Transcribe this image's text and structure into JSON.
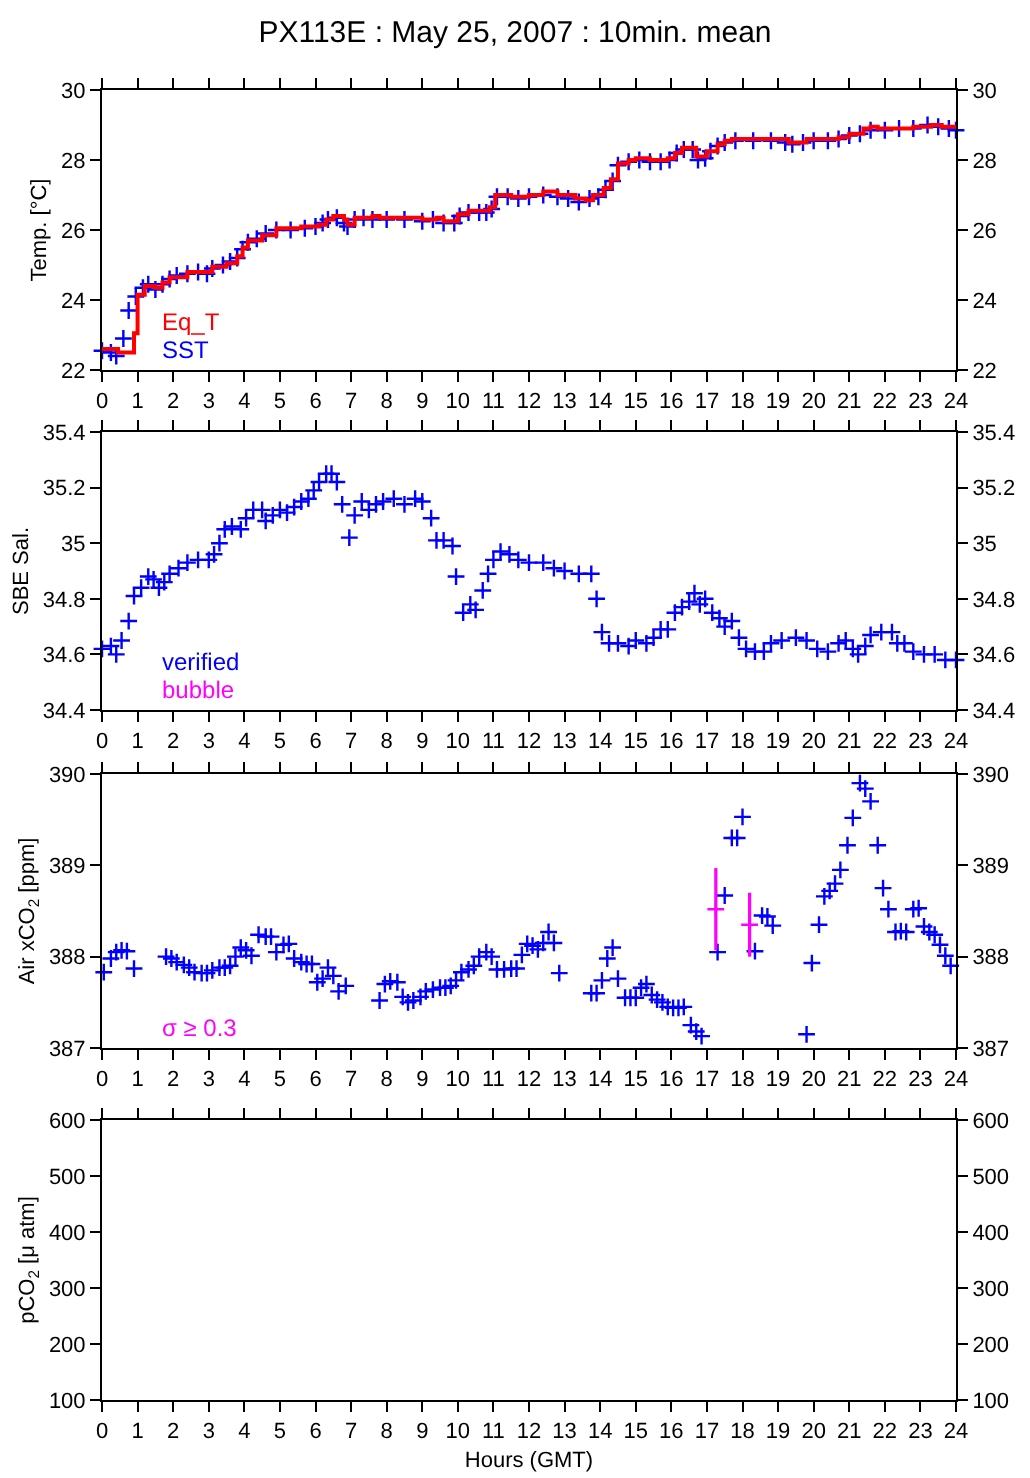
{
  "chart_data": [
    {
      "type": "scatter",
      "title": "PX113E : May 25, 2007 : 10min. mean",
      "ylabel": "Temp. [°C]",
      "grid": false,
      "xlim": [
        0,
        24
      ],
      "xticks": [
        0,
        1,
        2,
        3,
        4,
        5,
        6,
        7,
        8,
        9,
        10,
        11,
        12,
        13,
        14,
        15,
        16,
        17,
        18,
        19,
        20,
        21,
        22,
        23,
        24
      ],
      "ylim": [
        22,
        30
      ],
      "yticks": [
        22,
        24,
        26,
        28,
        30
      ],
      "y2lim": [
        22,
        30
      ],
      "y2ticks": [
        22,
        24,
        26,
        28,
        30
      ],
      "series": [
        {
          "name": "Eq_T",
          "type": "step",
          "color": "#ff0000",
          "x": [
            0,
            0.45,
            0.9,
            1.0,
            1.2,
            1.5,
            1.7,
            1.9,
            2.4,
            3.0,
            3.1,
            3.5,
            3.8,
            3.95,
            4.1,
            4.5,
            4.9,
            5.6,
            6.1,
            6.3,
            6.5,
            6.8,
            6.9,
            7.1,
            7.6,
            7.8,
            9.0,
            9.4,
            9.6,
            10.0,
            10.3,
            10.9,
            11.05,
            11.5,
            12.0,
            12.4,
            12.8,
            13.3,
            13.6,
            13.8,
            14.1,
            14.3,
            14.5,
            14.8,
            15.0,
            15.4,
            15.9,
            16.1,
            16.3,
            16.7,
            17.0,
            17.3,
            17.5,
            17.7,
            18.9,
            19.3,
            19.8,
            20.7,
            21.0,
            21.4,
            21.6,
            21.8,
            22.8,
            23.3,
            23.6,
            24
          ],
          "values": [
            22.6,
            22.5,
            23.05,
            24.15,
            24.4,
            24.35,
            24.5,
            24.65,
            24.8,
            24.8,
            24.95,
            25.05,
            25.25,
            25.5,
            25.7,
            25.85,
            26.05,
            26.1,
            26.15,
            26.3,
            26.4,
            26.3,
            26.15,
            26.35,
            26.4,
            26.35,
            26.3,
            26.35,
            26.25,
            26.45,
            26.55,
            26.65,
            27.0,
            26.95,
            27.0,
            27.1,
            27.0,
            26.9,
            26.85,
            27.0,
            27.2,
            27.45,
            27.9,
            28.0,
            28.05,
            28.0,
            28.05,
            28.2,
            28.35,
            28.1,
            28.25,
            28.45,
            28.55,
            28.6,
            28.6,
            28.5,
            28.6,
            28.65,
            28.75,
            28.9,
            28.95,
            28.9,
            28.95,
            29.0,
            28.95,
            28.95
          ]
        },
        {
          "name": "SST",
          "marker": "cross",
          "color": "#0000ff",
          "x": [
            0,
            0.25,
            0.4,
            0.6,
            0.75,
            0.95,
            1.15,
            1.3,
            1.5,
            1.7,
            1.9,
            2.1,
            2.4,
            2.7,
            2.95,
            3.1,
            3.4,
            3.6,
            3.8,
            3.95,
            4.1,
            4.35,
            4.6,
            4.9,
            5.3,
            5.7,
            6.0,
            6.2,
            6.35,
            6.6,
            6.8,
            6.9,
            7.1,
            7.35,
            7.6,
            8.0,
            8.5,
            9.0,
            9.3,
            9.6,
            9.9,
            10.05,
            10.3,
            10.6,
            10.8,
            10.95,
            11.1,
            11.4,
            11.7,
            12.0,
            12.4,
            12.8,
            13.1,
            13.4,
            13.7,
            13.95,
            14.15,
            14.35,
            14.5,
            14.8,
            15.1,
            15.4,
            15.7,
            15.95,
            16.15,
            16.35,
            16.6,
            16.75,
            16.95,
            17.1,
            17.3,
            17.5,
            17.8,
            18.3,
            18.8,
            19.2,
            19.4,
            19.7,
            20.0,
            20.4,
            20.7,
            21.0,
            21.3,
            21.6,
            22.0,
            22.4,
            22.8,
            23.2,
            23.5,
            23.8,
            24
          ],
          "values": [
            22.55,
            22.5,
            22.4,
            22.9,
            23.7,
            24.1,
            24.35,
            24.45,
            24.3,
            24.45,
            24.6,
            24.7,
            24.75,
            24.8,
            24.75,
            24.9,
            25.0,
            25.1,
            25.2,
            25.45,
            25.65,
            25.75,
            25.9,
            26.0,
            26.0,
            26.05,
            26.1,
            26.2,
            26.3,
            26.35,
            26.2,
            26.1,
            26.3,
            26.35,
            26.3,
            26.3,
            26.3,
            26.25,
            26.3,
            26.2,
            26.2,
            26.4,
            26.5,
            26.5,
            26.5,
            26.6,
            26.95,
            26.95,
            26.9,
            26.95,
            27.0,
            26.95,
            26.9,
            26.8,
            26.9,
            26.95,
            27.15,
            27.4,
            27.85,
            27.95,
            28.0,
            27.95,
            27.95,
            28.0,
            28.2,
            28.3,
            28.3,
            28.0,
            28.05,
            28.25,
            28.4,
            28.5,
            28.55,
            28.55,
            28.55,
            28.5,
            28.45,
            28.5,
            28.55,
            28.55,
            28.6,
            28.7,
            28.75,
            28.85,
            28.85,
            28.9,
            28.9,
            29.0,
            28.95,
            28.9,
            28.85
          ]
        }
      ]
    },
    {
      "type": "scatter",
      "ylabel": "SBE Sal.",
      "marker": "cross",
      "grid": false,
      "annotations": [
        "bubble"
      ],
      "xlim": [
        0,
        24
      ],
      "xticks": [
        0,
        1,
        2,
        3,
        4,
        5,
        6,
        7,
        8,
        9,
        10,
        11,
        12,
        13,
        14,
        15,
        16,
        17,
        18,
        19,
        20,
        21,
        22,
        23,
        24
      ],
      "ylim": [
        34.4,
        35.4
      ],
      "yticks": [
        34.4,
        34.6,
        34.8,
        35,
        35.2,
        35.4
      ],
      "y2lim": [
        34.4,
        35.4
      ],
      "y2ticks": [
        34.4,
        34.6,
        34.8,
        35,
        35.2,
        35.4
      ],
      "series": [
        {
          "name": "verified",
          "color": "#0000ff",
          "x": [
            0,
            0.25,
            0.4,
            0.55,
            0.75,
            0.9,
            1.1,
            1.3,
            1.45,
            1.6,
            1.75,
            1.9,
            2.15,
            2.4,
            2.7,
            3.0,
            3.15,
            3.3,
            3.45,
            3.65,
            3.9,
            4.05,
            4.25,
            4.5,
            4.6,
            4.8,
            5.0,
            5.2,
            5.4,
            5.6,
            5.8,
            5.95,
            6.1,
            6.3,
            6.45,
            6.6,
            6.75,
            6.95,
            7.1,
            7.3,
            7.5,
            7.7,
            7.9,
            8.2,
            8.5,
            8.8,
            9.0,
            9.25,
            9.4,
            9.6,
            9.85,
            9.95,
            10.15,
            10.35,
            10.5,
            10.7,
            10.85,
            11.0,
            11.2,
            11.45,
            11.7,
            12.0,
            12.4,
            12.7,
            13.0,
            13.4,
            13.75,
            13.9,
            14.05,
            14.25,
            14.5,
            14.8,
            15.0,
            15.3,
            15.5,
            15.7,
            15.9,
            16.1,
            16.3,
            16.5,
            16.65,
            16.8,
            16.95,
            17.15,
            17.35,
            17.5,
            17.7,
            17.9,
            18.1,
            18.35,
            18.6,
            18.8,
            19.1,
            19.5,
            19.8,
            20.1,
            20.4,
            20.7,
            20.9,
            21.1,
            21.25,
            21.45,
            21.6,
            21.9,
            22.2,
            22.35,
            22.55,
            22.8,
            23.1,
            23.4,
            23.7,
            24.0
          ],
          "values": [
            34.62,
            34.63,
            34.6,
            34.65,
            34.72,
            34.81,
            34.84,
            34.88,
            34.87,
            34.84,
            34.86,
            34.89,
            34.91,
            34.93,
            34.94,
            34.94,
            34.96,
            35.0,
            35.05,
            35.06,
            35.05,
            35.09,
            35.12,
            35.12,
            35.08,
            35.1,
            35.12,
            35.11,
            35.13,
            35.15,
            35.16,
            35.19,
            35.22,
            35.25,
            35.25,
            35.22,
            35.14,
            35.02,
            35.1,
            35.15,
            35.12,
            35.14,
            35.15,
            35.16,
            35.14,
            35.16,
            35.15,
            35.09,
            35.01,
            35.01,
            34.99,
            34.88,
            34.75,
            34.78,
            34.76,
            34.83,
            34.89,
            34.94,
            34.97,
            34.96,
            34.94,
            34.93,
            34.93,
            34.91,
            34.9,
            34.89,
            34.89,
            34.8,
            34.68,
            34.64,
            34.64,
            34.63,
            34.65,
            34.64,
            34.66,
            34.69,
            34.69,
            34.75,
            34.77,
            34.79,
            34.82,
            34.78,
            34.8,
            34.75,
            34.73,
            34.7,
            34.72,
            34.66,
            34.62,
            34.61,
            34.61,
            34.64,
            34.65,
            34.66,
            34.65,
            34.62,
            34.61,
            34.64,
            34.65,
            34.62,
            34.6,
            34.63,
            34.67,
            34.68,
            34.68,
            34.64,
            34.64,
            34.61,
            34.6,
            34.6,
            34.58,
            34.58
          ]
        }
      ]
    },
    {
      "type": "scatter",
      "ylabel": "Air xCO$_{2}$ [ppm]",
      "marker": "cross",
      "grid": false,
      "xlim": [
        0,
        24
      ],
      "xticks": [
        0,
        1,
        2,
        3,
        4,
        5,
        6,
        7,
        8,
        9,
        10,
        11,
        12,
        13,
        14,
        15,
        16,
        17,
        18,
        19,
        20,
        21,
        22,
        23,
        24
      ],
      "ylim": [
        387,
        390
      ],
      "yticks": [
        387,
        388,
        389,
        390
      ],
      "y2lim": [
        387,
        390
      ],
      "y2ticks": [
        387,
        388,
        389,
        390
      ],
      "series": [
        {
          "color": "#0000ff",
          "x": [
            0.05,
            0.25,
            0.4,
            0.55,
            0.7,
            0.9,
            1.8,
            1.95,
            2.1,
            2.3,
            2.45,
            2.6,
            2.8,
            2.95,
            3.1,
            3.3,
            3.45,
            3.6,
            3.75,
            3.9,
            4.05,
            4.2,
            4.4,
            4.6,
            4.75,
            4.9,
            5.1,
            5.25,
            5.4,
            5.6,
            5.75,
            5.9,
            6.05,
            6.2,
            6.35,
            6.5,
            6.65,
            6.85,
            7.8,
            7.95,
            8.1,
            8.3,
            8.45,
            8.6,
            8.75,
            8.95,
            9.1,
            9.3,
            9.5,
            9.65,
            9.8,
            9.95,
            10.1,
            10.3,
            10.45,
            10.6,
            10.8,
            10.95,
            11.1,
            11.3,
            11.5,
            11.65,
            11.8,
            11.95,
            12.1,
            12.25,
            12.4,
            12.55,
            12.7,
            12.85,
            13.75,
            13.9,
            14.05,
            14.2,
            14.35,
            14.5,
            14.7,
            14.85,
            15.0,
            15.15,
            15.3,
            15.45,
            15.6,
            15.75,
            15.9,
            16.05,
            16.2,
            16.35,
            16.55,
            16.7,
            16.85,
            17.3,
            17.5,
            17.7,
            17.85,
            18.0,
            18.35,
            18.55,
            18.7,
            18.85,
            19.8,
            19.95,
            20.15,
            20.3,
            20.45,
            20.6,
            20.75,
            20.95,
            21.1,
            21.3,
            21.45,
            21.6,
            21.8,
            21.95,
            22.1,
            22.3,
            22.45,
            22.6,
            22.8,
            22.95,
            23.1,
            23.25,
            23.4,
            23.55,
            23.7,
            23.85
          ],
          "values": [
            387.83,
            387.98,
            388.05,
            388.07,
            388.06,
            387.87,
            388.0,
            387.98,
            387.94,
            387.91,
            387.88,
            387.83,
            387.82,
            387.82,
            387.85,
            387.88,
            387.88,
            387.9,
            388.0,
            388.1,
            388.07,
            388.01,
            388.24,
            388.22,
            388.22,
            388.05,
            388.13,
            388.14,
            387.98,
            387.94,
            387.92,
            387.92,
            387.72,
            387.76,
            387.88,
            387.79,
            387.62,
            387.68,
            387.52,
            387.7,
            387.73,
            387.72,
            387.56,
            387.5,
            387.52,
            387.56,
            387.62,
            387.64,
            387.66,
            387.66,
            387.68,
            387.74,
            387.83,
            387.86,
            387.9,
            388.0,
            388.05,
            388.0,
            387.86,
            387.86,
            387.87,
            387.87,
            388.02,
            388.14,
            388.12,
            388.08,
            388.15,
            388.27,
            388.15,
            387.82,
            387.6,
            387.6,
            387.74,
            387.98,
            388.1,
            387.76,
            387.55,
            387.55,
            387.55,
            387.66,
            387.7,
            387.58,
            387.53,
            387.5,
            387.45,
            387.44,
            387.44,
            387.45,
            387.25,
            387.18,
            387.13,
            388.05,
            388.67,
            389.3,
            389.3,
            389.53,
            388.06,
            388.45,
            388.44,
            388.34,
            387.15,
            387.93,
            388.35,
            388.66,
            388.72,
            388.8,
            388.95,
            389.22,
            389.52,
            389.9,
            389.84,
            389.7,
            389.22,
            388.75,
            388.52,
            388.27,
            388.28,
            388.27,
            388.52,
            388.53,
            388.33,
            388.27,
            388.24,
            388.13,
            388.01,
            387.9
          ]
        },
        {
          "name": "σ ≥ 0.3",
          "color": "#ff00ff",
          "x": [
            17.25,
            18.2
          ],
          "values": [
            388.52,
            388.35
          ],
          "errors": [
            0.45,
            0.35
          ]
        }
      ]
    },
    {
      "type": "scatter",
      "ylabel": "pCO$_{2}$ [μ atm]",
      "xlabel": "Hours (GMT)",
      "xlim": [
        0,
        24
      ],
      "xticks": [
        0,
        1,
        2,
        3,
        4,
        5,
        6,
        7,
        8,
        9,
        10,
        11,
        12,
        13,
        14,
        15,
        16,
        17,
        18,
        19,
        20,
        21,
        22,
        23,
        24
      ],
      "ylim": [
        100,
        600
      ],
      "yticks": [
        100,
        200,
        300,
        400,
        500,
        600
      ],
      "y2lim": [
        100,
        600
      ],
      "y2ticks": [
        100,
        200,
        300,
        400,
        500,
        600
      ],
      "grid": false
    }
  ]
}
